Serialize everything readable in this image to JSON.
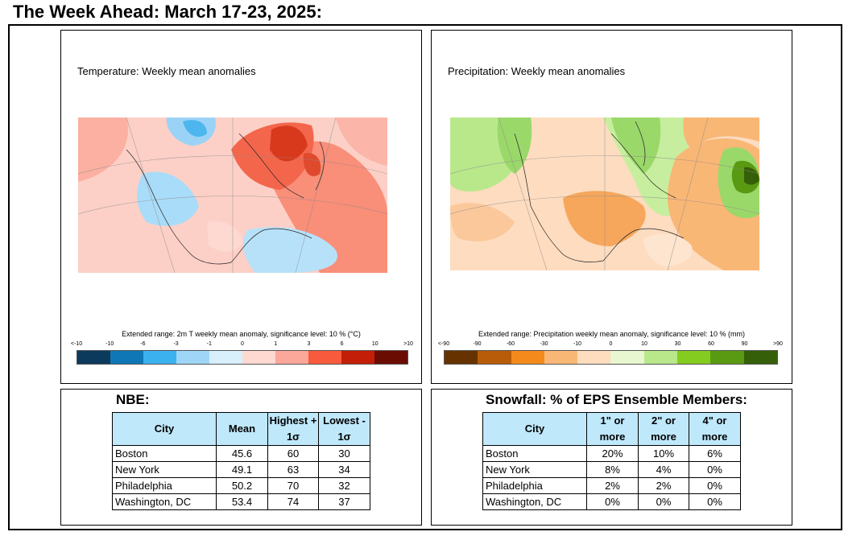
{
  "title": "The Week Ahead: March 17-23, 2025:",
  "temperature": {
    "title": "Temperature: Weekly mean anomalies",
    "caption": "Extended range: 2m T weekly mean anomaly, significance level: 10 % (°C)",
    "tick_labels": [
      "<-10",
      "-10",
      "-6",
      "-3",
      "-1",
      "0",
      "1",
      "3",
      "6",
      "10",
      ">10"
    ],
    "colors": [
      "#0b3a5c",
      "#0f77b5",
      "#3cb1ef",
      "#9fd6f7",
      "#d8effc",
      "#fdd9d2",
      "#fba79a",
      "#f85a3d",
      "#c21e08",
      "#6b0c03"
    ]
  },
  "precipitation": {
    "title": "Precipitation: Weekly mean anomalies",
    "caption": "Extended range: Precipitation weekly mean anomaly, significance level: 10 % (mm)",
    "tick_labels": [
      "<-90",
      "-90",
      "-60",
      "-30",
      "-10",
      "0",
      "10",
      "30",
      "60",
      "90",
      ">90"
    ],
    "colors": [
      "#663300",
      "#b85c0a",
      "#f48a1c",
      "#f9b776",
      "#fdddbe",
      "#e8f7cf",
      "#b9e88b",
      "#84cc20",
      "#5a9a13",
      "#365f0a"
    ]
  },
  "nbe": {
    "title": "NBE:",
    "headers": [
      "City",
      "Mean",
      "Highest + 1σ",
      "Lowest - 1σ"
    ],
    "rows": [
      [
        "Boston",
        "45.6",
        "60",
        "30"
      ],
      [
        "New York",
        "49.1",
        "63",
        "34"
      ],
      [
        "Philadelphia",
        "50.2",
        "70",
        "32"
      ],
      [
        "Washington, DC",
        "53.4",
        "74",
        "37"
      ]
    ]
  },
  "snowfall": {
    "title": "Snowfall: % of EPS Ensemble Members:",
    "headers": [
      "City",
      "1\" or more",
      "2\" or more",
      "4\" or more"
    ],
    "rows": [
      [
        "Boston",
        "20%",
        "10%",
        "6%"
      ],
      [
        "New York",
        "8%",
        "4%",
        "0%"
      ],
      [
        "Philadelphia",
        "2%",
        "2%",
        "0%"
      ],
      [
        "Washington, DC",
        "0%",
        "0%",
        "0%"
      ]
    ]
  }
}
